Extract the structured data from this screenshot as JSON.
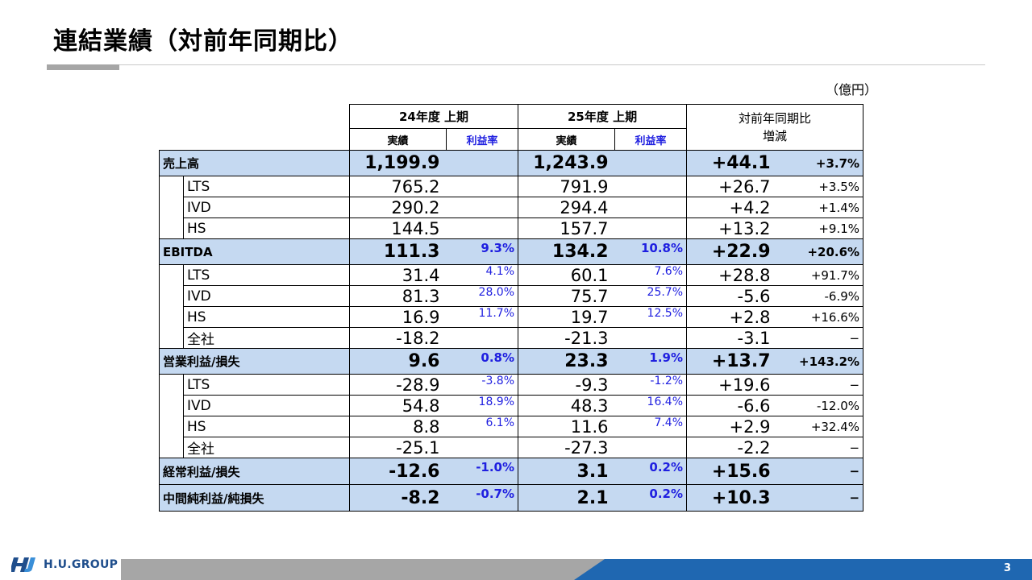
{
  "title": "連結業績（対前年同期比）",
  "unit": "（億円）",
  "headers": {
    "period1": "24年度 上期",
    "period2": "25年度 上期",
    "yoy_line1": "対前年同期比",
    "yoy_line2": "増減",
    "actual": "実績",
    "margin": "利益率"
  },
  "rows": [
    {
      "type": "main",
      "label": "売上高",
      "v1": "1,199.9",
      "m1": "",
      "v2": "1,243.9",
      "m2": "",
      "diff": "+44.1",
      "rate": "+3.7%"
    },
    {
      "type": "sub",
      "label": "LTS",
      "v1": "765.2",
      "m1": "",
      "v2": "791.9",
      "m2": "",
      "diff": "+26.7",
      "rate": "+3.5%"
    },
    {
      "type": "sub",
      "label": "IVD",
      "v1": "290.2",
      "m1": "",
      "v2": "294.4",
      "m2": "",
      "diff": "+4.2",
      "rate": "+1.4%"
    },
    {
      "type": "sub",
      "label": "HS",
      "v1": "144.5",
      "m1": "",
      "v2": "157.7",
      "m2": "",
      "diff": "+13.2",
      "rate": "+9.1%"
    },
    {
      "type": "main",
      "label": "EBITDA",
      "v1": "111.3",
      "m1": "9.3%",
      "v2": "134.2",
      "m2": "10.8%",
      "diff": "+22.9",
      "rate": "+20.6%"
    },
    {
      "type": "sub",
      "label": "LTS",
      "v1": "31.4",
      "m1": "4.1%",
      "v2": "60.1",
      "m2": "7.6%",
      "diff": "+28.8",
      "rate": "+91.7%"
    },
    {
      "type": "sub",
      "label": "IVD",
      "v1": "81.3",
      "m1": "28.0%",
      "v2": "75.7",
      "m2": "25.7%",
      "diff": "-5.6",
      "rate": "-6.9%"
    },
    {
      "type": "sub",
      "label": "HS",
      "v1": "16.9",
      "m1": "11.7%",
      "v2": "19.7",
      "m2": "12.5%",
      "diff": "+2.8",
      "rate": "+16.6%"
    },
    {
      "type": "sub",
      "label": "全社",
      "v1": "-18.2",
      "m1": "",
      "v2": "-21.3",
      "m2": "",
      "diff": "-3.1",
      "rate": "−"
    },
    {
      "type": "main",
      "label": "営業利益/損失",
      "v1": "9.6",
      "m1": "0.8%",
      "v2": "23.3",
      "m2": "1.9%",
      "diff": "+13.7",
      "rate": "+143.2%"
    },
    {
      "type": "sub",
      "label": "LTS",
      "v1": "-28.9",
      "m1": "-3.8%",
      "v2": "-9.3",
      "m2": "-1.2%",
      "diff": "+19.6",
      "rate": "−"
    },
    {
      "type": "sub",
      "label": "IVD",
      "v1": "54.8",
      "m1": "18.9%",
      "v2": "48.3",
      "m2": "16.4%",
      "diff": "-6.6",
      "rate": "-12.0%"
    },
    {
      "type": "sub",
      "label": "HS",
      "v1": "8.8",
      "m1": "6.1%",
      "v2": "11.6",
      "m2": "7.4%",
      "diff": "+2.9",
      "rate": "+32.4%"
    },
    {
      "type": "sub",
      "label": "全社",
      "v1": "-25.1",
      "m1": "",
      "v2": "-27.3",
      "m2": "",
      "diff": "-2.2",
      "rate": "−"
    },
    {
      "type": "main",
      "label": "経常利益/損失",
      "v1": "-12.6",
      "m1": "-1.0%",
      "v2": "3.1",
      "m2": "0.2%",
      "diff": "+15.6",
      "rate": "−"
    },
    {
      "type": "main",
      "label": "中間純利益/純損失",
      "v1": "-8.2",
      "m1": "-0.7%",
      "v2": "2.1",
      "m2": "0.2%",
      "diff": "+10.3",
      "rate": "−"
    }
  ],
  "footer": {
    "logo_text": "H.U.GROUP",
    "page": "3",
    "accent_gray": "#a6a6a6",
    "accent_blue": "#1f67b1"
  }
}
